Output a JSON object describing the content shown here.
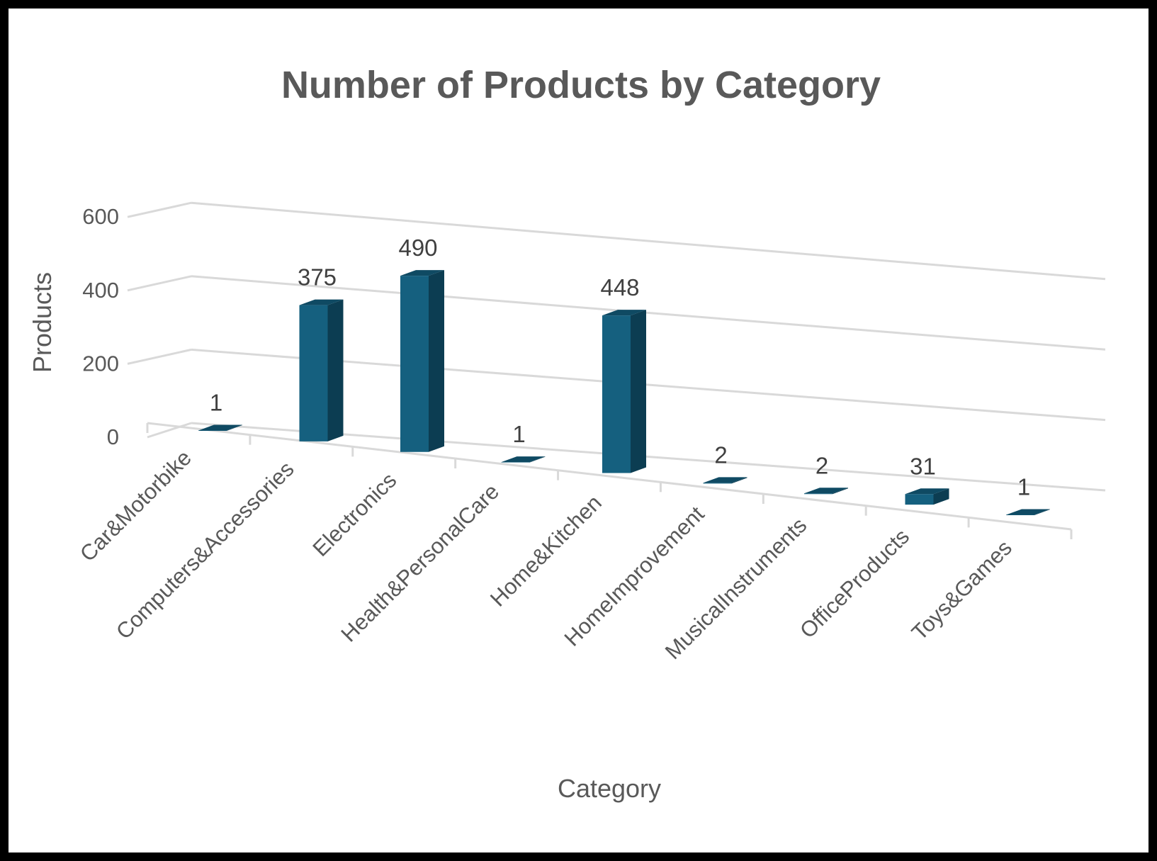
{
  "chart_data": {
    "type": "bar",
    "title": "Number of Products by Category",
    "xlabel": "Category",
    "ylabel": "Products",
    "ylim": [
      0,
      600
    ],
    "yticks": [
      0,
      200,
      400,
      600
    ],
    "categories": [
      "Car&Motorbike",
      "Computers&Accessories",
      "Electronics",
      "Health&PersonalCare",
      "Home&Kitchen",
      "HomeImprovement",
      "MusicalInstruments",
      "OfficeProducts",
      "Toys&Games"
    ],
    "values": [
      1,
      375,
      490,
      1,
      448,
      2,
      2,
      31,
      1
    ],
    "data_labels": [
      "1",
      "375",
      "490",
      "1",
      "448",
      "2",
      "2",
      "31",
      "1"
    ],
    "grid": true,
    "style": "3d-column",
    "colors": {
      "front": "#15607f",
      "side": "#0c3d52",
      "top": "#0f4a63",
      "grid": "#d9d9d9",
      "text": "#595959"
    }
  }
}
